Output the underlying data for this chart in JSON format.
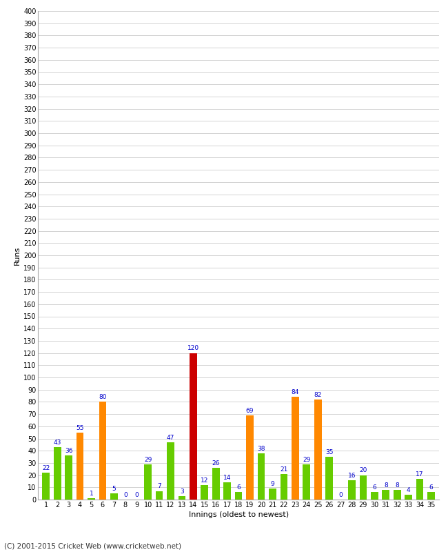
{
  "xlabel": "Innings (oldest to newest)",
  "ylabel": "Runs",
  "values": [
    22,
    43,
    36,
    55,
    1,
    80,
    5,
    0,
    0,
    29,
    7,
    47,
    3,
    120,
    12,
    26,
    14,
    6,
    69,
    38,
    9,
    21,
    84,
    29,
    82,
    35,
    0,
    16,
    20,
    6,
    8,
    8,
    4,
    17,
    6
  ],
  "innings": [
    1,
    2,
    3,
    4,
    5,
    6,
    7,
    8,
    9,
    10,
    11,
    12,
    13,
    14,
    15,
    16,
    17,
    18,
    19,
    20,
    21,
    22,
    23,
    24,
    25,
    26,
    27,
    28,
    29,
    30,
    31,
    32,
    33,
    34,
    35
  ],
  "colors": [
    "#66cc00",
    "#66cc00",
    "#66cc00",
    "#ff8800",
    "#66cc00",
    "#ff8800",
    "#66cc00",
    "#66cc00",
    "#66cc00",
    "#66cc00",
    "#66cc00",
    "#66cc00",
    "#66cc00",
    "#cc0000",
    "#66cc00",
    "#66cc00",
    "#66cc00",
    "#66cc00",
    "#ff8800",
    "#66cc00",
    "#66cc00",
    "#66cc00",
    "#ff8800",
    "#66cc00",
    "#ff8800",
    "#66cc00",
    "#66cc00",
    "#66cc00",
    "#66cc00",
    "#66cc00",
    "#66cc00",
    "#66cc00",
    "#66cc00",
    "#66cc00",
    "#66cc00"
  ],
  "ylim": [
    0,
    400
  ],
  "ytick_step": 10,
  "footer": "(C) 2001-2015 Cricket Web (www.cricketweb.net)",
  "bg_color": "#ffffff",
  "grid_color": "#cccccc",
  "label_color": "#0000cc",
  "bar_width": 0.65
}
